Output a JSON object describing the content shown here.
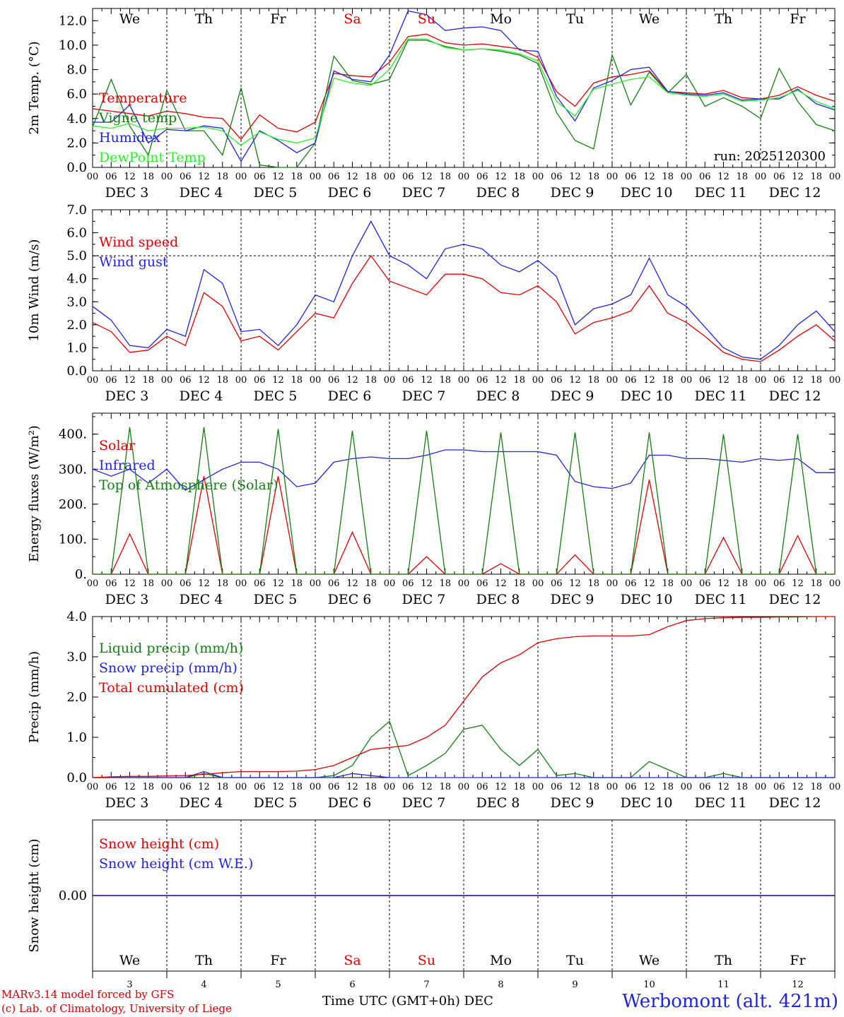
{
  "footer": {
    "model_line": "MARv3.14 model forced by GFS",
    "lab_line": "(c) Lab. of Climatology, University of Liege",
    "time_label": "Time UTC (GMT+0h) DEC",
    "station": "Werbomont (alt. 421m)"
  },
  "colors": {
    "red": "#e00000",
    "green": "#137f13",
    "blue": "#1f24e6",
    "lightgreen": "#2cf02c",
    "sep": "#000000"
  },
  "days": {
    "weekdays": [
      "We",
      "Th",
      "Fr",
      "Sa",
      "Su",
      "Mo",
      "Tu",
      "We",
      "Th",
      "Fr"
    ],
    "weekend_flags": [
      false,
      false,
      false,
      true,
      true,
      false,
      false,
      false,
      false,
      false
    ],
    "date_labels": [
      "DEC  3",
      "DEC  4",
      "DEC  5",
      "DEC  6",
      "DEC  7",
      "DEC  8",
      "DEC  9",
      "DEC 10",
      "DEC 11",
      "DEC 12"
    ],
    "day_numbers": [
      "3",
      "4",
      "5",
      "6",
      "7",
      "8",
      "9",
      "10",
      "11",
      "12"
    ],
    "hour_ticks": [
      "00",
      "06",
      "12",
      "18"
    ],
    "end_tick": "00"
  },
  "chart_data": [
    {
      "id": "temp",
      "type": "line",
      "ylabel": "2m Temp. (°C)",
      "ylim": [
        0,
        13
      ],
      "yticks": [
        "0.0",
        "2.0",
        "4.0",
        "6.0",
        "8.0",
        "10.0",
        "12.0"
      ],
      "ytick_values": [
        0,
        2,
        4,
        6,
        8,
        10,
        12
      ],
      "run_label": "run: 2025120300",
      "x_hours": [
        0,
        6,
        12,
        18,
        24,
        30,
        36,
        42,
        48,
        54,
        60,
        66,
        72,
        78,
        84,
        90,
        96,
        102,
        108,
        114,
        120,
        126,
        132,
        138,
        144,
        150,
        156,
        162,
        168,
        174,
        180,
        186,
        192,
        198,
        204,
        210,
        216,
        222,
        228,
        234,
        240
      ],
      "series": [
        {
          "name": "Temperature",
          "color": "red",
          "values": [
            4.8,
            4.6,
            4.4,
            4.2,
            4.6,
            4.4,
            4.1,
            4.0,
            2.3,
            4.3,
            3.2,
            2.9,
            3.7,
            7.7,
            7.5,
            7.4,
            8.6,
            10.7,
            10.9,
            10.2,
            10.0,
            10.1,
            9.9,
            9.7,
            9.0,
            6.2,
            5.0,
            6.9,
            7.4,
            7.6,
            7.9,
            6.2,
            6.1,
            6.0,
            6.3,
            5.7,
            5.6,
            5.9,
            6.6,
            5.9,
            5.4
          ]
        },
        {
          "name": "Vigne temp",
          "color": "green",
          "values": [
            3.3,
            7.2,
            3.4,
            1.0,
            6.3,
            3.0,
            3.0,
            1.0,
            6.5,
            0.2,
            0.0,
            0.0,
            2.0,
            9.1,
            7.1,
            6.8,
            7.2,
            10.4,
            10.4,
            9.9,
            9.6,
            9.7,
            9.5,
            9.2,
            8.5,
            4.5,
            2.2,
            1.5,
            9.2,
            5.1,
            7.8,
            6.1,
            7.6,
            5.0,
            5.7,
            5.0,
            4.0,
            8.1,
            5.4,
            3.5,
            3.0
          ]
        },
        {
          "name": "Humidex",
          "color": "blue",
          "values": [
            3.7,
            3.7,
            5.1,
            2.0,
            3.1,
            3.0,
            3.4,
            3.2,
            0.5,
            3.0,
            2.2,
            1.2,
            2.0,
            7.9,
            7.2,
            7.0,
            9.2,
            12.8,
            12.5,
            11.2,
            11.4,
            11.5,
            11.2,
            9.6,
            9.5,
            5.8,
            3.8,
            6.5,
            7.1,
            8.0,
            8.2,
            6.2,
            6.0,
            5.9,
            6.1,
            5.5,
            5.6,
            5.6,
            6.4,
            5.2,
            4.7
          ]
        },
        {
          "name": "DewPoint Temp",
          "color": "lightgreen",
          "values": [
            3.4,
            3.2,
            3.6,
            3.0,
            3.2,
            3.2,
            3.3,
            3.0,
            1.8,
            2.9,
            2.3,
            2.0,
            2.4,
            7.3,
            6.9,
            6.7,
            8.0,
            10.5,
            10.5,
            9.8,
            9.6,
            9.7,
            9.6,
            9.3,
            8.7,
            5.4,
            4.2,
            6.4,
            6.8,
            7.2,
            7.4,
            6.1,
            5.9,
            5.8,
            6.0,
            5.4,
            5.5,
            5.7,
            6.3,
            5.4,
            4.8
          ]
        }
      ]
    },
    {
      "id": "wind",
      "type": "line",
      "ylabel": "10m Wind (m/s)",
      "ylim": [
        0,
        7
      ],
      "yticks": [
        "0.0",
        "1.0",
        "2.0",
        "3.0",
        "4.0",
        "5.0",
        "6.0",
        "7.0"
      ],
      "ytick_values": [
        0,
        1,
        2,
        3,
        4,
        5,
        6,
        7
      ],
      "ref_line": 5.0,
      "x_hours": [
        0,
        6,
        12,
        18,
        24,
        30,
        36,
        42,
        48,
        54,
        60,
        66,
        72,
        78,
        84,
        90,
        96,
        102,
        108,
        114,
        120,
        126,
        132,
        138,
        144,
        150,
        156,
        162,
        168,
        174,
        180,
        186,
        192,
        198,
        204,
        210,
        216,
        222,
        228,
        234,
        240
      ],
      "series": [
        {
          "name": "Wind speed",
          "color": "red",
          "values": [
            2.1,
            1.7,
            0.8,
            0.9,
            1.5,
            1.1,
            3.4,
            2.8,
            1.3,
            1.5,
            0.9,
            1.7,
            2.5,
            2.3,
            3.8,
            5.0,
            3.9,
            3.6,
            3.3,
            4.2,
            4.2,
            4.0,
            3.4,
            3.3,
            3.7,
            3.0,
            1.6,
            2.1,
            2.3,
            2.6,
            3.7,
            2.5,
            2.1,
            1.5,
            0.8,
            0.5,
            0.4,
            0.9,
            1.5,
            2.0,
            1.3
          ]
        },
        {
          "name": "Wind gust",
          "color": "blue",
          "values": [
            2.8,
            2.2,
            1.1,
            1.0,
            1.8,
            1.5,
            4.4,
            3.8,
            1.7,
            1.8,
            1.1,
            2.0,
            3.3,
            3.0,
            5.0,
            6.5,
            5.0,
            4.6,
            4.0,
            5.3,
            5.5,
            5.3,
            4.6,
            4.3,
            4.8,
            4.1,
            2.0,
            2.7,
            2.9,
            3.3,
            4.9,
            3.3,
            2.8,
            1.9,
            1.0,
            0.6,
            0.5,
            1.1,
            2.0,
            2.6,
            1.7
          ]
        }
      ]
    },
    {
      "id": "energy",
      "type": "line",
      "ylabel": "Energy fluxes (W/m²)",
      "ylim": [
        0,
        460
      ],
      "yticks": [
        "0.",
        "100.",
        "200.",
        "300.",
        "400."
      ],
      "ytick_values": [
        0,
        100,
        200,
        300,
        400
      ],
      "x_hours": [
        0,
        6,
        12,
        18,
        24,
        30,
        36,
        42,
        48,
        54,
        60,
        66,
        72,
        78,
        84,
        90,
        96,
        102,
        108,
        114,
        120,
        126,
        132,
        138,
        144,
        150,
        156,
        162,
        168,
        174,
        180,
        186,
        192,
        198,
        204,
        210,
        216,
        222,
        228,
        234,
        240
      ],
      "series": [
        {
          "name": "Solar",
          "color": "red",
          "values": [
            0,
            0,
            115,
            0,
            0,
            0,
            280,
            0,
            0,
            0,
            280,
            0,
            0,
            0,
            120,
            0,
            0,
            0,
            50,
            0,
            0,
            0,
            30,
            0,
            0,
            0,
            55,
            0,
            0,
            0,
            270,
            0,
            0,
            0,
            105,
            0,
            0,
            0,
            110,
            0,
            0
          ]
        },
        {
          "name": "Infrared",
          "color": "blue",
          "values": [
            300,
            280,
            300,
            260,
            300,
            240,
            270,
            300,
            320,
            320,
            300,
            250,
            260,
            320,
            330,
            335,
            330,
            330,
            340,
            355,
            355,
            350,
            350,
            350,
            350,
            340,
            265,
            250,
            245,
            260,
            340,
            340,
            330,
            330,
            325,
            320,
            330,
            325,
            330,
            290,
            290
          ]
        },
        {
          "name": "Top of Atmosphere (Solar)",
          "color": "green",
          "values": [
            0,
            0,
            420,
            0,
            0,
            0,
            420,
            0,
            0,
            0,
            415,
            0,
            0,
            0,
            410,
            0,
            0,
            0,
            410,
            0,
            0,
            0,
            405,
            0,
            0,
            0,
            405,
            0,
            0,
            0,
            405,
            0,
            0,
            0,
            400,
            0,
            0,
            0,
            400,
            0,
            0
          ]
        }
      ]
    },
    {
      "id": "precip",
      "type": "line",
      "ylabel": "Precip (mm/h)",
      "ylim": [
        0,
        4
      ],
      "yticks": [
        "0.0",
        "1.0",
        "2.0",
        "3.0",
        "4.0"
      ],
      "ytick_values": [
        0,
        1,
        2,
        3,
        4
      ],
      "x_hours": [
        0,
        6,
        12,
        18,
        24,
        30,
        36,
        42,
        48,
        54,
        60,
        66,
        72,
        78,
        84,
        90,
        96,
        102,
        108,
        114,
        120,
        126,
        132,
        138,
        144,
        150,
        156,
        162,
        168,
        174,
        180,
        186,
        192,
        198,
        204,
        210,
        216,
        222,
        228,
        234,
        240
      ],
      "series": [
        {
          "name": "Liquid precip (mm/h)",
          "color": "green",
          "values": [
            0,
            0,
            0,
            0,
            0,
            0.0,
            0.1,
            0.0,
            0,
            0,
            0,
            0,
            0,
            0.05,
            0.3,
            1.0,
            1.4,
            0.05,
            0.3,
            0.6,
            1.2,
            1.3,
            0.7,
            0.3,
            0.7,
            0.05,
            0.1,
            0.0,
            0,
            0,
            0.4,
            0.2,
            0.0,
            0,
            0.1,
            0.0,
            0,
            0,
            0,
            0,
            0
          ]
        },
        {
          "name": "Snow precip (mm/h)",
          "color": "blue",
          "values": [
            0,
            0,
            0,
            0,
            0,
            0,
            0.15,
            0.0,
            0,
            0,
            0,
            0,
            0,
            0,
            0.1,
            0.05,
            0,
            0,
            0,
            0,
            0,
            0,
            0,
            0,
            0,
            0,
            0,
            0,
            0,
            0,
            0,
            0,
            0,
            0,
            0,
            0,
            0,
            0,
            0,
            0,
            0
          ]
        },
        {
          "name": "Total cumulated (cm)",
          "color": "red",
          "values": [
            0,
            0.02,
            0.03,
            0.03,
            0.04,
            0.05,
            0.08,
            0.12,
            0.15,
            0.15,
            0.15,
            0.16,
            0.2,
            0.3,
            0.5,
            0.7,
            0.75,
            0.8,
            1.0,
            1.3,
            1.9,
            2.5,
            2.85,
            3.05,
            3.35,
            3.45,
            3.5,
            3.52,
            3.52,
            3.52,
            3.55,
            3.75,
            3.9,
            3.95,
            3.97,
            3.98,
            3.98,
            3.99,
            3.99,
            4.0,
            4.0
          ]
        }
      ]
    },
    {
      "id": "snow",
      "type": "line",
      "ylabel": "Snow height (cm)",
      "ylim": [
        -1,
        1
      ],
      "yticks": [
        "0.00"
      ],
      "ytick_values": [
        0
      ],
      "x_hours": [
        0,
        240
      ],
      "series": [
        {
          "name": "Snow height (cm)",
          "color": "red",
          "values": [
            0,
            0
          ]
        },
        {
          "name": "Snow height (cm W.E.)",
          "color": "blue",
          "values": [
            0,
            0
          ]
        }
      ]
    }
  ]
}
